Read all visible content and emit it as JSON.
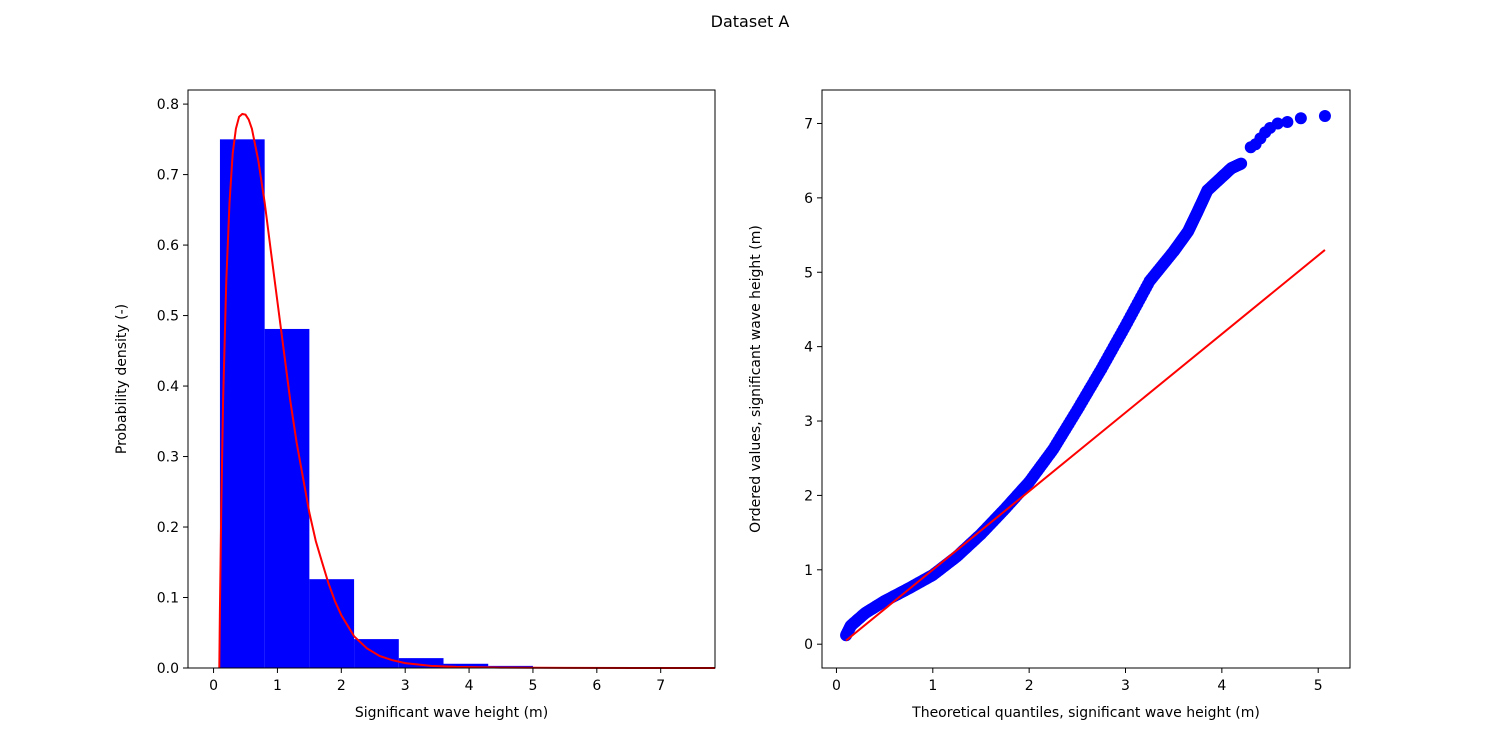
{
  "figure": {
    "title": "Dataset A"
  },
  "colors": {
    "bar": "#0000ff",
    "curve": "#ff0000",
    "points": "#0000ff"
  },
  "chart_data": [
    {
      "type": "bar",
      "subtype": "histogram",
      "xlabel": "Significant wave height (m)",
      "ylabel": "Probability density (-)",
      "xlim": [
        -0.4,
        7.85
      ],
      "ylim": [
        0,
        0.82
      ],
      "xticks": [
        0,
        1,
        2,
        3,
        4,
        5,
        6,
        7
      ],
      "yticks": [
        0.0,
        0.1,
        0.2,
        0.3,
        0.4,
        0.5,
        0.6,
        0.7,
        0.8
      ],
      "bins": [
        {
          "x0": 0.1,
          "x1": 0.8,
          "value": 0.75
        },
        {
          "x0": 0.8,
          "x1": 1.5,
          "value": 0.481
        },
        {
          "x0": 1.5,
          "x1": 2.2,
          "value": 0.126
        },
        {
          "x0": 2.2,
          "x1": 2.9,
          "value": 0.041
        },
        {
          "x0": 2.9,
          "x1": 3.6,
          "value": 0.014
        },
        {
          "x0": 3.6,
          "x1": 4.3,
          "value": 0.006
        },
        {
          "x0": 4.3,
          "x1": 5.0,
          "value": 0.003
        },
        {
          "x0": 5.0,
          "x1": 5.7,
          "value": 0.001
        },
        {
          "x0": 5.7,
          "x1": 6.4,
          "value": 0.0006
        },
        {
          "x0": 6.4,
          "x1": 7.1,
          "value": 0.0003
        }
      ],
      "curve": {
        "x": [
          0.09,
          0.1,
          0.12,
          0.15,
          0.2,
          0.25,
          0.3,
          0.35,
          0.4,
          0.45,
          0.5,
          0.55,
          0.6,
          0.7,
          0.8,
          0.9,
          1.0,
          1.1,
          1.2,
          1.3,
          1.4,
          1.5,
          1.6,
          1.7,
          1.8,
          1.9,
          2.0,
          2.2,
          2.4,
          2.6,
          2.8,
          3.0,
          3.4,
          3.8,
          4.5,
          5.5,
          7.0,
          7.85
        ],
        "y": [
          0.0,
          0.08,
          0.22,
          0.38,
          0.55,
          0.66,
          0.73,
          0.765,
          0.782,
          0.786,
          0.785,
          0.778,
          0.765,
          0.72,
          0.66,
          0.59,
          0.52,
          0.45,
          0.38,
          0.32,
          0.27,
          0.22,
          0.18,
          0.15,
          0.12,
          0.095,
          0.075,
          0.045,
          0.028,
          0.017,
          0.011,
          0.007,
          0.003,
          0.0015,
          0.0005,
          0.0001,
          0.0,
          0.0
        ]
      }
    },
    {
      "type": "scatter",
      "subtype": "qq-plot",
      "xlabel": "Theoretical quantiles, significant wave height (m)",
      "ylabel": "Ordered values, significant wave height (m)",
      "xlim": [
        -0.15,
        5.33
      ],
      "ylim": [
        -0.32,
        7.45
      ],
      "xticks": [
        0,
        1,
        2,
        3,
        4,
        5
      ],
      "yticks": [
        0,
        1,
        2,
        3,
        4,
        5,
        6,
        7
      ],
      "curve_points": {
        "x": [
          0.1,
          0.15,
          0.3,
          0.5,
          0.75,
          1.0,
          1.25,
          1.5,
          1.75,
          2.0,
          2.25,
          2.5,
          2.75,
          3.0,
          3.25,
          3.5,
          3.65,
          3.75,
          3.85,
          4.0,
          4.1,
          4.2
        ],
        "y": [
          0.12,
          0.25,
          0.42,
          0.58,
          0.75,
          0.93,
          1.18,
          1.48,
          1.82,
          2.18,
          2.62,
          3.15,
          3.7,
          4.28,
          4.88,
          5.28,
          5.55,
          5.82,
          6.1,
          6.28,
          6.4,
          6.46
        ]
      },
      "sparse_points": {
        "x": [
          4.3,
          4.35,
          4.4,
          4.45,
          4.5,
          4.58,
          4.68,
          4.82,
          5.07
        ],
        "y": [
          6.68,
          6.72,
          6.8,
          6.88,
          6.94,
          7.0,
          7.02,
          7.07,
          7.1
        ]
      },
      "reference_line": {
        "x": [
          0.1,
          5.07
        ],
        "y": [
          0.05,
          5.3
        ]
      }
    }
  ]
}
